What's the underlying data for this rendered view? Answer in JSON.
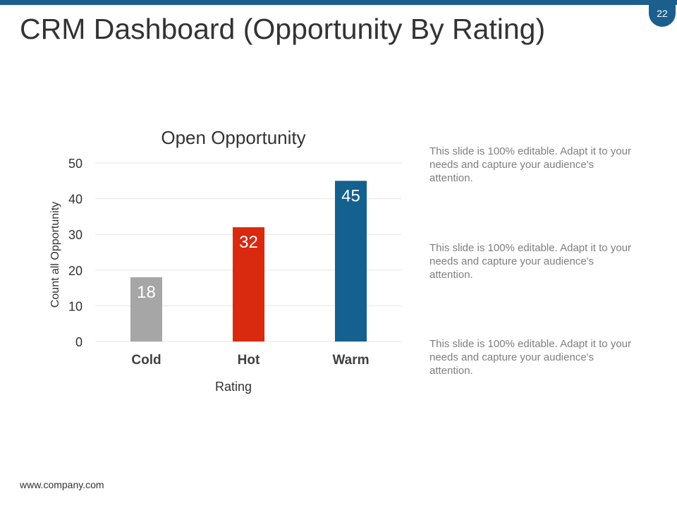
{
  "slide": {
    "title": "CRM Dashboard (Opportunity By Rating)",
    "page_number": "22",
    "footer_url": "www.company.com",
    "accent_color": "#1a5f8d"
  },
  "descriptions": [
    "This slide is 100% editable. Adapt it to your needs and capture your audience's attention.",
    "This slide is 100% editable. Adapt it to your needs and capture your audience's attention.",
    "This slide is 100% editable. Adapt it to your needs and capture your audience's attention."
  ],
  "chart_data": {
    "type": "bar",
    "title": "Open Opportunity",
    "xlabel": "Rating",
    "ylabel": "Count  all  Opportunity",
    "categories": [
      "Cold",
      "Hot",
      "Warm"
    ],
    "values": [
      18,
      32,
      45
    ],
    "colors": [
      "#a6a6a6",
      "#d9290f",
      "#14608f"
    ],
    "ylim": [
      0,
      50
    ],
    "yticks": [
      0,
      10,
      20,
      30,
      40,
      50
    ],
    "grid": true,
    "legend": "none"
  }
}
